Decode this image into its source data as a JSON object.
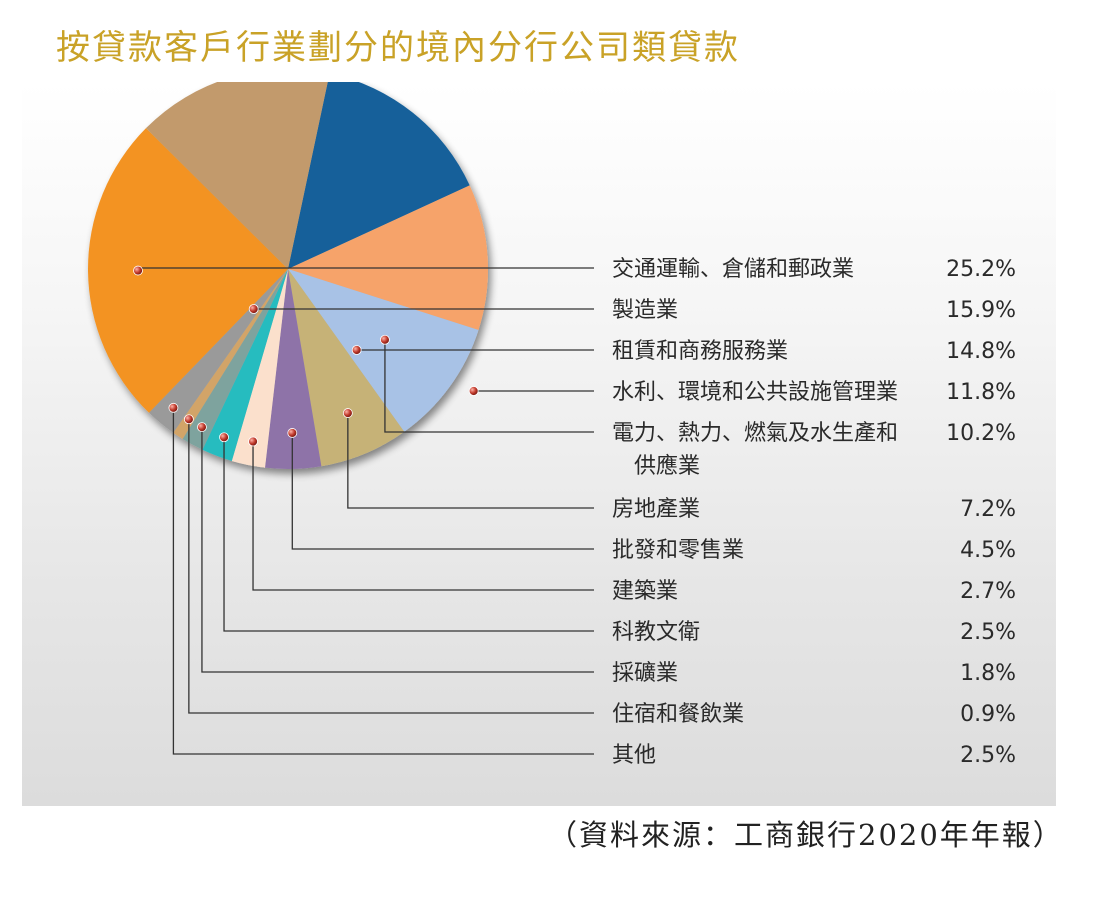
{
  "title": "按貸款客戶行業劃分的境內分行公司類貸款",
  "source": "（資料來源：工商銀行2020年年報）",
  "chart_data": {
    "type": "pie",
    "title": "按貸款客戶行業劃分的境內分行公司類貸款",
    "slices": [
      {
        "label": "交通運輸、倉儲和郵政業",
        "value": 25.2,
        "display": "25.2%",
        "color": "#f39322"
      },
      {
        "label": "製造業",
        "value": 15.9,
        "display": "15.9%",
        "color": "#c29a6c"
      },
      {
        "label": "租賃和商務服務業",
        "value": 14.8,
        "display": "14.8%",
        "color": "#14609a"
      },
      {
        "label": "水利、環境和公共設施管理業",
        "value": 11.8,
        "display": "11.8%",
        "color": "#f6a36a"
      },
      {
        "label": "電力、熱力、燃氣及水生產和供應業",
        "value": 10.2,
        "display": "10.2%",
        "color": "#a8c2e6",
        "label_lines": [
          "電力、熱力、燃氣及水生產和",
          "供應業"
        ]
      },
      {
        "label": "房地產業",
        "value": 7.2,
        "display": "7.2%",
        "color": "#c6b277"
      },
      {
        "label": "批發和零售業",
        "value": 4.5,
        "display": "4.5%",
        "color": "#8e73a8"
      },
      {
        "label": "建築業",
        "value": 2.7,
        "display": "2.7%",
        "color": "#fbe0cc"
      },
      {
        "label": "科教文衛",
        "value": 2.5,
        "display": "2.5%",
        "color": "#27bcbf"
      },
      {
        "label": "採礦業",
        "value": 1.8,
        "display": "1.8%",
        "color": "#7ea39e"
      },
      {
        "label": "住宿和餐飲業",
        "value": 0.9,
        "display": "0.9%",
        "color": "#d2a468"
      },
      {
        "label": "其他",
        "value": 2.5,
        "display": "2.5%",
        "color": "#9a9a9a"
      }
    ],
    "legend_placement": "right"
  }
}
